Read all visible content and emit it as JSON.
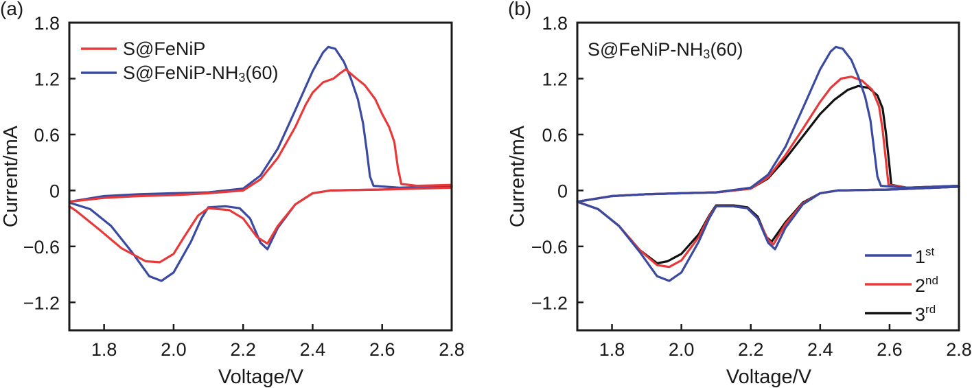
{
  "chart_data": [
    {
      "type": "line",
      "panel_label": "(a)",
      "title": "",
      "xlabel": "Voltage/V",
      "ylabel": "Current/mA",
      "xlim": [
        1.7,
        2.8
      ],
      "ylim": [
        -1.5,
        1.8
      ],
      "xticks": [
        1.8,
        2.0,
        2.2,
        2.4,
        2.6,
        2.8
      ],
      "xtick_labels": [
        "1.8",
        "2.0",
        "2.2",
        "2.4",
        "2.6",
        "2.8"
      ],
      "yticks": [
        1.8,
        1.2,
        0.6,
        0,
        -0.6,
        -1.2
      ],
      "ytick_labels": [
        "1.8",
        "1.2",
        "0.6",
        "0",
        "−0.6",
        "−1.2"
      ],
      "grid": false,
      "legend_position": "top-left",
      "series": [
        {
          "name": "S@FeNiP",
          "legend_main": "S@FeNiP",
          "legend_sub": "",
          "legend_tail": "",
          "color": "#e8393a",
          "points": [
            [
              1.7,
              -0.12
            ],
            [
              1.8,
              -0.08
            ],
            [
              1.9,
              -0.06
            ],
            [
              2.0,
              -0.05
            ],
            [
              2.1,
              -0.03
            ],
            [
              2.2,
              0.0
            ],
            [
              2.25,
              0.12
            ],
            [
              2.3,
              0.35
            ],
            [
              2.35,
              0.68
            ],
            [
              2.38,
              0.92
            ],
            [
              2.4,
              1.05
            ],
            [
              2.43,
              1.16
            ],
            [
              2.46,
              1.2
            ],
            [
              2.48,
              1.26
            ],
            [
              2.495,
              1.3
            ],
            [
              2.52,
              1.22
            ],
            [
              2.55,
              1.13
            ],
            [
              2.58,
              0.98
            ],
            [
              2.6,
              0.82
            ],
            [
              2.62,
              0.68
            ],
            [
              2.635,
              0.52
            ],
            [
              2.645,
              0.25
            ],
            [
              2.655,
              0.07
            ],
            [
              2.7,
              0.05
            ],
            [
              2.8,
              0.06
            ],
            [
              2.8,
              0.03
            ],
            [
              2.6,
              0.01
            ],
            [
              2.45,
              0.0
            ],
            [
              2.4,
              -0.03
            ],
            [
              2.35,
              -0.15
            ],
            [
              2.3,
              -0.38
            ],
            [
              2.27,
              -0.57
            ],
            [
              2.24,
              -0.5
            ],
            [
              2.2,
              -0.3
            ],
            [
              2.16,
              -0.21
            ],
            [
              2.1,
              -0.19
            ],
            [
              2.07,
              -0.27
            ],
            [
              2.03,
              -0.5
            ],
            [
              2.0,
              -0.68
            ],
            [
              1.96,
              -0.77
            ],
            [
              1.92,
              -0.76
            ],
            [
              1.85,
              -0.62
            ],
            [
              1.78,
              -0.4
            ],
            [
              1.72,
              -0.22
            ],
            [
              1.7,
              -0.17
            ]
          ]
        },
        {
          "name": "S@FeNiP-NH3(60)",
          "legend_main": "S@FeNiP-NH",
          "legend_sub": "3",
          "legend_tail": "(60)",
          "color": "#3a4aa0",
          "points": [
            [
              1.7,
              -0.12
            ],
            [
              1.8,
              -0.06
            ],
            [
              1.9,
              -0.04
            ],
            [
              2.0,
              -0.03
            ],
            [
              2.1,
              -0.02
            ],
            [
              2.2,
              0.02
            ],
            [
              2.25,
              0.16
            ],
            [
              2.3,
              0.45
            ],
            [
              2.35,
              0.86
            ],
            [
              2.4,
              1.28
            ],
            [
              2.43,
              1.48
            ],
            [
              2.445,
              1.54
            ],
            [
              2.465,
              1.52
            ],
            [
              2.49,
              1.38
            ],
            [
              2.51,
              1.2
            ],
            [
              2.53,
              0.98
            ],
            [
              2.545,
              0.72
            ],
            [
              2.555,
              0.45
            ],
            [
              2.565,
              0.15
            ],
            [
              2.575,
              0.05
            ],
            [
              2.65,
              0.03
            ],
            [
              2.8,
              0.05
            ],
            [
              2.8,
              0.04
            ],
            [
              2.6,
              0.01
            ],
            [
              2.45,
              0.0
            ],
            [
              2.4,
              -0.03
            ],
            [
              2.35,
              -0.15
            ],
            [
              2.3,
              -0.4
            ],
            [
              2.27,
              -0.63
            ],
            [
              2.25,
              -0.56
            ],
            [
              2.22,
              -0.3
            ],
            [
              2.19,
              -0.19
            ],
            [
              2.15,
              -0.17
            ],
            [
              2.1,
              -0.18
            ],
            [
              2.08,
              -0.3
            ],
            [
              2.05,
              -0.55
            ],
            [
              2.0,
              -0.88
            ],
            [
              1.965,
              -0.97
            ],
            [
              1.93,
              -0.92
            ],
            [
              1.88,
              -0.66
            ],
            [
              1.82,
              -0.38
            ],
            [
              1.76,
              -0.2
            ],
            [
              1.7,
              -0.13
            ]
          ]
        }
      ]
    },
    {
      "type": "line",
      "panel_label": "(b)",
      "title": "",
      "annotation": "S@FeNiP-NH3(60)",
      "annotation_main": "S@FeNiP-NH",
      "annotation_sub": "3",
      "annotation_tail": "(60)",
      "xlabel": "Voltage/V",
      "ylabel": "Current/mA",
      "xlim": [
        1.7,
        2.8
      ],
      "ylim": [
        -1.5,
        1.8
      ],
      "xticks": [
        1.8,
        2.0,
        2.2,
        2.4,
        2.6,
        2.8
      ],
      "xtick_labels": [
        "1.8",
        "2.0",
        "2.2",
        "2.4",
        "2.6",
        "2.8"
      ],
      "yticks": [
        1.8,
        1.2,
        0.6,
        0,
        -0.6,
        -1.2
      ],
      "ytick_labels": [
        "1.8",
        "1.2",
        "0.6",
        "0",
        "−0.6",
        "−1.2"
      ],
      "grid": false,
      "legend_position": "bottom-right",
      "series": [
        {
          "name": "1st",
          "legend_main": "1",
          "legend_sup": "st",
          "color": "#3a4aa0",
          "points": [
            [
              1.7,
              -0.12
            ],
            [
              1.8,
              -0.06
            ],
            [
              1.9,
              -0.04
            ],
            [
              2.0,
              -0.03
            ],
            [
              2.1,
              -0.02
            ],
            [
              2.2,
              0.03
            ],
            [
              2.25,
              0.17
            ],
            [
              2.3,
              0.47
            ],
            [
              2.35,
              0.88
            ],
            [
              2.4,
              1.3
            ],
            [
              2.43,
              1.49
            ],
            [
              2.445,
              1.54
            ],
            [
              2.465,
              1.52
            ],
            [
              2.49,
              1.4
            ],
            [
              2.51,
              1.22
            ],
            [
              2.53,
              1.0
            ],
            [
              2.545,
              0.75
            ],
            [
              2.555,
              0.45
            ],
            [
              2.565,
              0.15
            ],
            [
              2.575,
              0.05
            ],
            [
              2.65,
              0.03
            ],
            [
              2.8,
              0.05
            ],
            [
              2.8,
              0.04
            ],
            [
              2.6,
              0.01
            ],
            [
              2.45,
              0.0
            ],
            [
              2.4,
              -0.03
            ],
            [
              2.35,
              -0.15
            ],
            [
              2.3,
              -0.4
            ],
            [
              2.27,
              -0.63
            ],
            [
              2.25,
              -0.56
            ],
            [
              2.22,
              -0.3
            ],
            [
              2.19,
              -0.19
            ],
            [
              2.15,
              -0.17
            ],
            [
              2.1,
              -0.17
            ],
            [
              2.08,
              -0.3
            ],
            [
              2.05,
              -0.55
            ],
            [
              2.0,
              -0.88
            ],
            [
              1.965,
              -0.97
            ],
            [
              1.93,
              -0.92
            ],
            [
              1.88,
              -0.66
            ],
            [
              1.82,
              -0.38
            ],
            [
              1.76,
              -0.2
            ],
            [
              1.7,
              -0.12
            ]
          ]
        },
        {
          "name": "2nd",
          "legend_main": "2",
          "legend_sup": "nd",
          "color": "#e8393a",
          "points": [
            [
              1.7,
              -0.12
            ],
            [
              1.8,
              -0.06
            ],
            [
              1.9,
              -0.04
            ],
            [
              2.0,
              -0.03
            ],
            [
              2.1,
              -0.02
            ],
            [
              2.2,
              0.02
            ],
            [
              2.25,
              0.14
            ],
            [
              2.3,
              0.38
            ],
            [
              2.35,
              0.66
            ],
            [
              2.4,
              0.95
            ],
            [
              2.43,
              1.1
            ],
            [
              2.46,
              1.2
            ],
            [
              2.49,
              1.22
            ],
            [
              2.52,
              1.18
            ],
            [
              2.55,
              1.08
            ],
            [
              2.57,
              0.9
            ],
            [
              2.58,
              0.65
            ],
            [
              2.59,
              0.3
            ],
            [
              2.597,
              0.06
            ],
            [
              2.65,
              0.03
            ],
            [
              2.8,
              0.05
            ],
            [
              2.8,
              0.04
            ],
            [
              2.6,
              0.01
            ],
            [
              2.45,
              0.0
            ],
            [
              2.4,
              -0.03
            ],
            [
              2.35,
              -0.14
            ],
            [
              2.3,
              -0.36
            ],
            [
              2.265,
              -0.58
            ],
            [
              2.25,
              -0.53
            ],
            [
              2.22,
              -0.3
            ],
            [
              2.19,
              -0.19
            ],
            [
              2.15,
              -0.17
            ],
            [
              2.1,
              -0.17
            ],
            [
              2.08,
              -0.28
            ],
            [
              2.05,
              -0.5
            ],
            [
              2.0,
              -0.75
            ],
            [
              1.965,
              -0.82
            ],
            [
              1.93,
              -0.8
            ],
            [
              1.88,
              -0.64
            ],
            [
              1.82,
              -0.38
            ],
            [
              1.76,
              -0.2
            ],
            [
              1.7,
              -0.12
            ]
          ]
        },
        {
          "name": "3rd",
          "legend_main": "3",
          "legend_sup": "rd",
          "color": "#111111",
          "points": [
            [
              1.7,
              -0.12
            ],
            [
              1.8,
              -0.06
            ],
            [
              1.9,
              -0.04
            ],
            [
              2.0,
              -0.03
            ],
            [
              2.1,
              -0.02
            ],
            [
              2.2,
              0.02
            ],
            [
              2.25,
              0.13
            ],
            [
              2.3,
              0.34
            ],
            [
              2.35,
              0.58
            ],
            [
              2.4,
              0.82
            ],
            [
              2.44,
              0.97
            ],
            [
              2.48,
              1.08
            ],
            [
              2.51,
              1.12
            ],
            [
              2.54,
              1.1
            ],
            [
              2.565,
              1.02
            ],
            [
              2.58,
              0.88
            ],
            [
              2.59,
              0.6
            ],
            [
              2.6,
              0.25
            ],
            [
              2.605,
              0.06
            ],
            [
              2.65,
              0.03
            ],
            [
              2.8,
              0.05
            ],
            [
              2.8,
              0.04
            ],
            [
              2.6,
              0.01
            ],
            [
              2.45,
              0.0
            ],
            [
              2.4,
              -0.03
            ],
            [
              2.35,
              -0.13
            ],
            [
              2.3,
              -0.34
            ],
            [
              2.26,
              -0.55
            ],
            [
              2.245,
              -0.5
            ],
            [
              2.22,
              -0.28
            ],
            [
              2.19,
              -0.18
            ],
            [
              2.15,
              -0.16
            ],
            [
              2.1,
              -0.16
            ],
            [
              2.08,
              -0.27
            ],
            [
              2.05,
              -0.47
            ],
            [
              2.0,
              -0.68
            ],
            [
              1.96,
              -0.76
            ],
            [
              1.93,
              -0.78
            ],
            [
              1.88,
              -0.64
            ],
            [
              1.82,
              -0.38
            ],
            [
              1.76,
              -0.2
            ],
            [
              1.7,
              -0.12
            ]
          ]
        }
      ]
    }
  ]
}
